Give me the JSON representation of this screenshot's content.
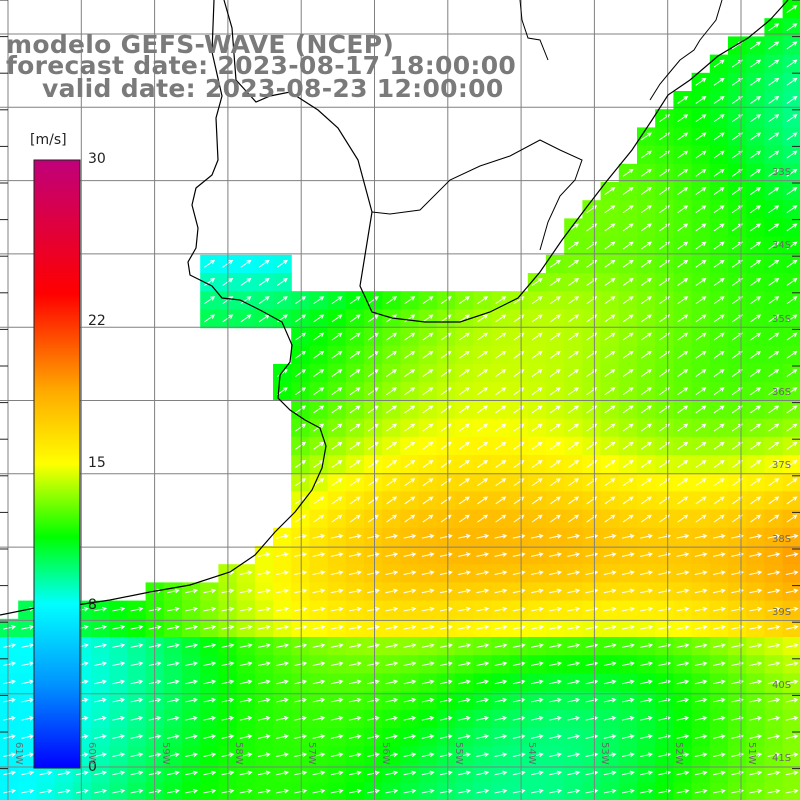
{
  "title": {
    "line1": "modelo GEFS-WAVE (NCEP)",
    "line2": "forecast date: 2023-08-17 18:00:00",
    "line3": "valid date: 2023-08-23 12:00:00"
  },
  "colorbar": {
    "unit": "[m/s]",
    "ticks": [
      {
        "label": "30",
        "value": 30
      },
      {
        "label": "22",
        "value": 22
      },
      {
        "label": "15",
        "value": 15
      },
      {
        "label": "8",
        "value": 8
      },
      {
        "label": "0",
        "value": 0
      }
    ],
    "colors": [
      "#0000ff",
      "#0096ff",
      "#00ffff",
      "#00ff00",
      "#ffff00",
      "#ffaa00",
      "#ff0000",
      "#c0007a"
    ]
  },
  "map": {
    "lat_labels": [
      "33S",
      "34S",
      "35S",
      "36S",
      "37S",
      "38S",
      "39S",
      "40S",
      "41S"
    ],
    "lon_labels": [
      "61W",
      "60W",
      "59W",
      "58W",
      "57W",
      "56W",
      "55W",
      "54W",
      "53W",
      "52W",
      "51W"
    ],
    "colors": {
      "coast": "#000000",
      "grid": "#808080",
      "arrow": "#ffffff"
    }
  }
}
